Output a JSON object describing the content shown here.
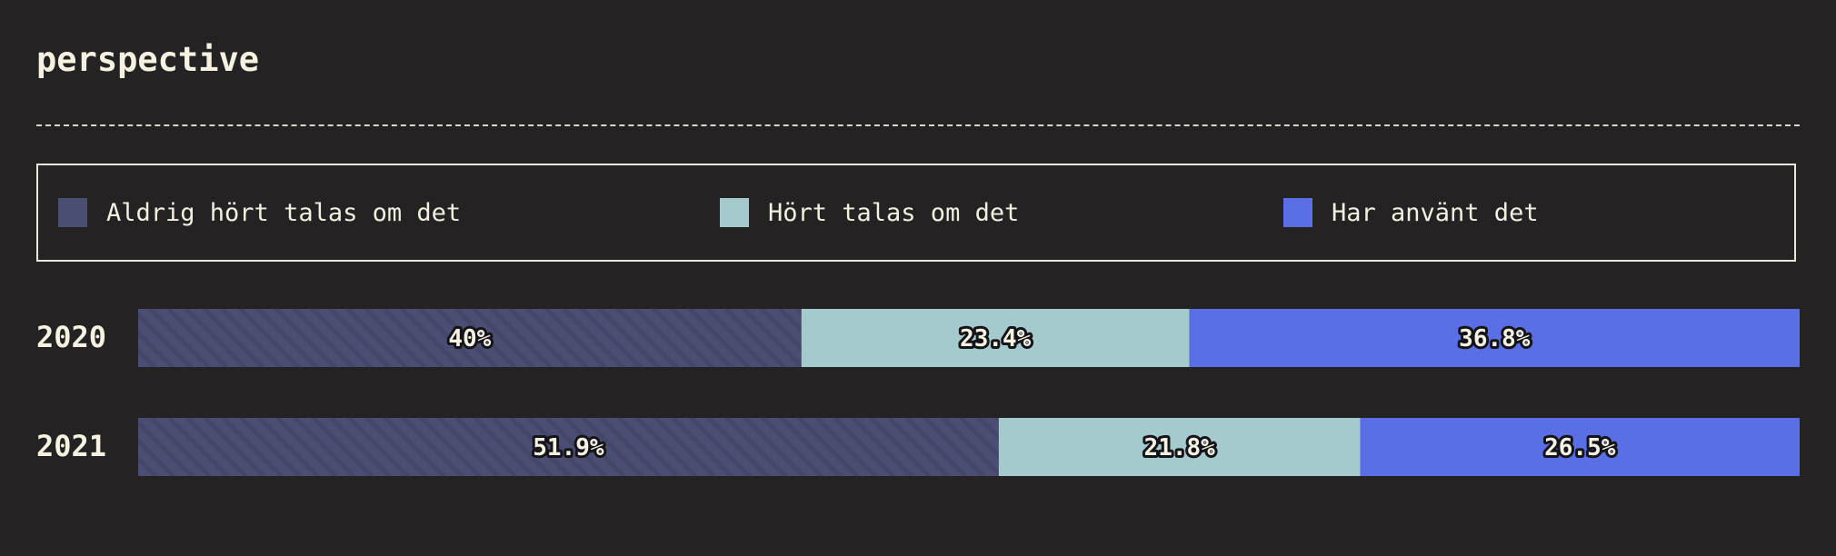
{
  "header": {
    "title": "perspective"
  },
  "colors": {
    "background": "#252224",
    "never_heard": "#4a4e73",
    "heard": "#a4cacd",
    "used": "#5a6ee6"
  },
  "legend": [
    {
      "label": "Aldrig hört talas om det",
      "color": "#4a4e73"
    },
    {
      "label": "Hört talas om det",
      "color": "#a4cacd"
    },
    {
      "label": "Har använt det",
      "color": "#5a6ee6"
    }
  ],
  "chart_data": {
    "type": "bar",
    "orientation": "horizontal",
    "stacked": true,
    "normalized": true,
    "title": "perspective",
    "categories": [
      "2020",
      "2021"
    ],
    "series": [
      {
        "name": "Aldrig hört talas om det",
        "values": [
          40,
          51.9
        ],
        "labels": [
          "40%",
          "51.9%"
        ],
        "color": "#4a4e73",
        "pattern": "diagonal-stripes"
      },
      {
        "name": "Hört talas om det",
        "values": [
          23.4,
          21.8
        ],
        "labels": [
          "23.4%",
          "21.8%"
        ],
        "color": "#a4cacd"
      },
      {
        "name": "Har använt det",
        "values": [
          36.8,
          26.5
        ],
        "labels": [
          "36.8%",
          "26.5%"
        ],
        "color": "#5a6ee6"
      }
    ],
    "grid": false,
    "legend_position": "top"
  }
}
